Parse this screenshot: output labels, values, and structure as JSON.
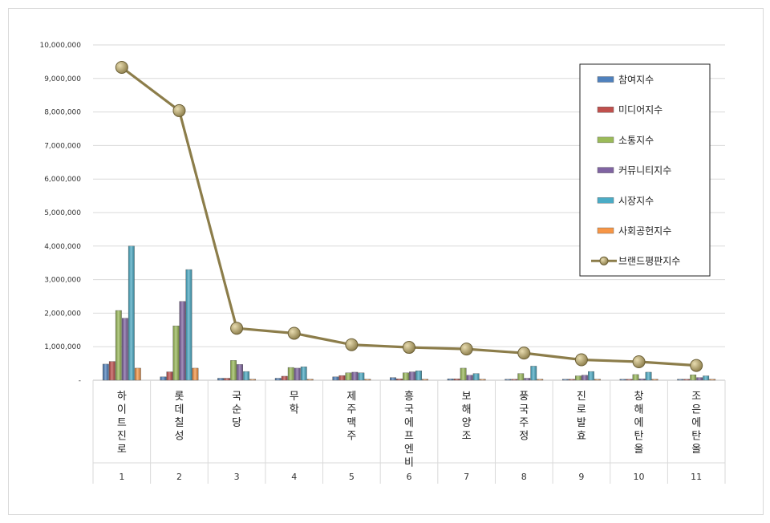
{
  "chart_data": {
    "type": "bar",
    "categories": [
      "1",
      "2",
      "3",
      "4",
      "5",
      "6",
      "7",
      "8",
      "9",
      "10",
      "11"
    ],
    "category_names": [
      "하이트진로",
      "롯데칠성",
      "국순당",
      "무학",
      "제주맥주",
      "흥국에프엔비",
      "보해양조",
      "풍국주정",
      "진로발효",
      "창해에탄올",
      "조은에탄올"
    ],
    "ylim": [
      0,
      10000000
    ],
    "y_ticks": [
      "-",
      "1,000,000",
      "2,000,000",
      "3,000,000",
      "4,000,000",
      "5,000,000",
      "6,000,000",
      "7,000,000",
      "8,000,000",
      "9,000,000",
      "10,000,000"
    ],
    "series": [
      {
        "name": "참여지수",
        "kind": "bar",
        "color": "#4f81bd",
        "values": [
          480000,
          100000,
          60000,
          60000,
          100000,
          80000,
          40000,
          20000,
          20000,
          20000,
          10000
        ]
      },
      {
        "name": "미디어지수",
        "kind": "bar",
        "color": "#c0504d",
        "values": [
          560000,
          250000,
          60000,
          120000,
          140000,
          40000,
          40000,
          30000,
          30000,
          30000,
          30000
        ]
      },
      {
        "name": "소통지수",
        "kind": "bar",
        "color": "#9bbb59",
        "values": [
          2080000,
          1620000,
          590000,
          380000,
          220000,
          220000,
          360000,
          200000,
          130000,
          170000,
          160000
        ]
      },
      {
        "name": "커뮤니티지수",
        "kind": "bar",
        "color": "#8064a2",
        "values": [
          1850000,
          2350000,
          470000,
          360000,
          240000,
          250000,
          150000,
          60000,
          150000,
          40000,
          80000
        ]
      },
      {
        "name": "시장지수",
        "kind": "bar",
        "color": "#4bacc6",
        "values": [
          4000000,
          3300000,
          260000,
          400000,
          220000,
          280000,
          200000,
          420000,
          260000,
          240000,
          130000
        ]
      },
      {
        "name": "사회공헌지수",
        "kind": "bar",
        "color": "#f79646",
        "values": [
          360000,
          360000,
          20000,
          20000,
          30000,
          20000,
          30000,
          20000,
          20000,
          20000,
          20000
        ]
      },
      {
        "name": "브랜드평판지수",
        "kind": "line",
        "color": "#8c7d4a",
        "values": [
          9330000,
          8040000,
          1550000,
          1400000,
          1060000,
          980000,
          930000,
          810000,
          610000,
          550000,
          440000
        ]
      }
    ],
    "legend": "right",
    "grid": true
  }
}
